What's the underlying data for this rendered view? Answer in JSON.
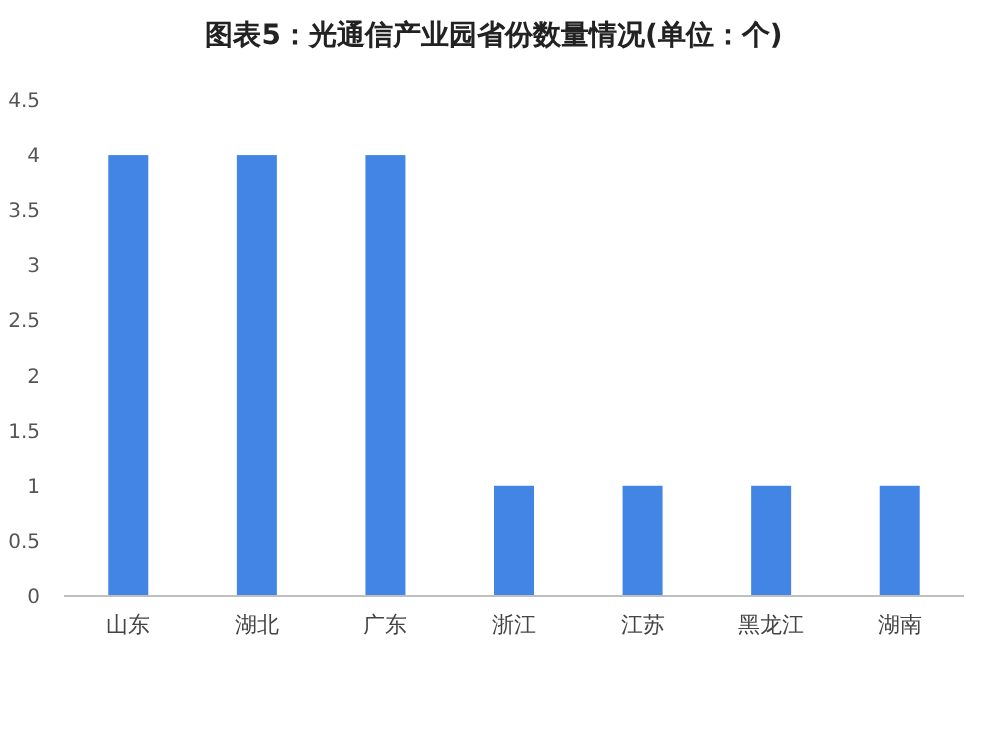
{
  "chart_data": {
    "type": "bar",
    "title": "图表5：光通信产业园省份数量情况(单位：个)",
    "categories": [
      "山东",
      "湖北",
      "广东",
      "浙江",
      "江苏",
      "黑龙江",
      "湖南"
    ],
    "values": [
      4,
      4,
      4,
      1,
      1,
      1,
      1
    ],
    "color": "#4285e4",
    "ylim": [
      0,
      4.5
    ],
    "yticks": [
      0,
      0.5,
      1,
      1.5,
      2,
      2.5,
      3,
      3.5,
      4,
      4.5
    ]
  }
}
